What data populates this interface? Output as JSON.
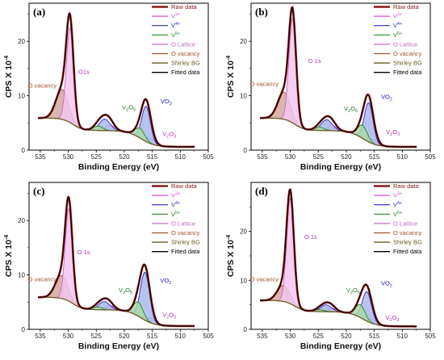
{
  "legend": [
    {
      "label": "Raw data",
      "color": "#8b1a1a",
      "text_color": "#8b1a1a",
      "width": 2.6
    },
    {
      "label": "V3+",
      "color": "#d64fd6",
      "text_color": "#d64fd6",
      "width": 1.2
    },
    {
      "label": "V4+",
      "color": "#2a2ad0",
      "text_color": "#2a2ad0",
      "width": 1.2
    },
    {
      "label": "V5+",
      "color": "#1f8a1f",
      "text_color": "#1f8a1f",
      "width": 1.2
    },
    {
      "label": "O Lattice",
      "color": "#c468c4",
      "text_color": "#c468c4",
      "width": 1.2
    },
    {
      "label": "O vacancy",
      "color": "#a0522d",
      "text_color": "#a0522d",
      "width": 1.2
    },
    {
      "label": "Shirley BG",
      "color": "#6b5a1e",
      "text_color": "#6b5a1e",
      "width": 1.4
    },
    {
      "label": "Fitted data",
      "color": "#000000",
      "text_color": "#000000",
      "width": 1.4
    }
  ],
  "colors": {
    "raw": "#8b1a1a",
    "fit": "#000000",
    "bg": "#6b5a1e",
    "olattice_fill": "#f3c6ee",
    "olattice_line": "#c468c4",
    "ovac_fill": "#d4a8a0",
    "ovac_line": "#a0522d",
    "v3_fill": "#eecbe8",
    "v3_line": "#d64fd6",
    "v4_fill": "#a9b9ea",
    "v4_line": "#2a2ad0",
    "v5_fill": "#a9d8a9",
    "v5_line": "#1f8a1f",
    "ann_ovac": "#a0522d",
    "ann_o1s": "#b030b0",
    "ann_v2o3_green": "#1f7a1f",
    "ann_vo2": "#1a1aa8",
    "ann_v2o3_purple": "#b030b0"
  },
  "chart_data": [
    {
      "type": "line",
      "panel_label": "(a)",
      "xlabel": "Binding Energy (eV)",
      "ylabel": "CPS X 10",
      "ylabel_exp": "-4",
      "xlim": [
        537,
        505
      ],
      "ylim": [
        0,
        27
      ],
      "xticks": [
        535,
        530,
        525,
        520,
        515,
        510,
        505
      ],
      "yticks": [
        0,
        10,
        20
      ],
      "background": 5.5,
      "components": [
        {
          "name": "O vacancy",
          "center": 531.1,
          "height": 5.5,
          "fwhm": 2.6
        },
        {
          "name": "O Lattice",
          "center": 529.7,
          "height": 17.5,
          "fwhm": 1.5
        },
        {
          "name": "V3+",
          "center": 522.5,
          "height": 1.0,
          "fwhm": 2.0
        },
        {
          "name": "V4+",
          "center": 523.5,
          "height": 2.1,
          "fwhm": 2.3
        },
        {
          "name": "V5+",
          "center": 524.7,
          "height": 0.8,
          "fwhm": 2.0
        },
        {
          "name": "V3+",
          "center": 515.2,
          "height": 1.0,
          "fwhm": 1.8
        },
        {
          "name": "V4+",
          "center": 516.1,
          "height": 6.5,
          "fwhm": 1.8
        },
        {
          "name": "V5+",
          "center": 517.2,
          "height": 1.8,
          "fwhm": 2.0
        }
      ],
      "annotations": [
        {
          "text": "O vacancy",
          "x": 537.2,
          "y": 11.5,
          "role": "ovac"
        },
        {
          "text": "O1s",
          "x": 528.2,
          "y": 14.0,
          "role": "o1s"
        },
        {
          "text": "V",
          "sub": "2",
          "text2": "O",
          "sub2": "5",
          "x": 520.4,
          "y": 7.5,
          "role": "v2o5"
        },
        {
          "text": "VO",
          "sub": "2",
          "x": 513.5,
          "y": 8.6,
          "role": "vo2"
        },
        {
          "text": "V",
          "sub": "2",
          "text2": "O",
          "sub2": "3",
          "x": 513.2,
          "y": 2.6,
          "role": "v2o3"
        }
      ]
    },
    {
      "type": "line",
      "panel_label": "(b)",
      "xlabel": "Binding Energy (eV)",
      "ylabel": "CPS X 10",
      "ylabel_exp": "-4",
      "xlim": [
        537,
        505
      ],
      "ylim": [
        0,
        27
      ],
      "xticks": [
        535,
        530,
        525,
        520,
        515,
        510,
        505
      ],
      "yticks": [
        0,
        10,
        20
      ],
      "background": 5.5,
      "components": [
        {
          "name": "O vacancy",
          "center": 531.1,
          "height": 5.0,
          "fwhm": 2.6
        },
        {
          "name": "O Lattice",
          "center": 529.6,
          "height": 19.2,
          "fwhm": 1.5
        },
        {
          "name": "V3+",
          "center": 522.5,
          "height": 0.9,
          "fwhm": 2.0
        },
        {
          "name": "V4+",
          "center": 523.5,
          "height": 2.0,
          "fwhm": 2.3
        },
        {
          "name": "V5+",
          "center": 524.8,
          "height": 0.6,
          "fwhm": 2.0
        },
        {
          "name": "V3+",
          "center": 515.0,
          "height": 0.9,
          "fwhm": 1.8
        },
        {
          "name": "V4+",
          "center": 516.0,
          "height": 7.2,
          "fwhm": 1.8
        },
        {
          "name": "V5+",
          "center": 517.1,
          "height": 2.4,
          "fwhm": 2.0
        }
      ],
      "annotations": [
        {
          "text": "O vacancy",
          "x": 537.2,
          "y": 11.8,
          "role": "ovac"
        },
        {
          "text": "O 1s",
          "x": 526.8,
          "y": 16.0,
          "role": "o1s"
        },
        {
          "text": "V",
          "sub": "2",
          "text2": "O",
          "sub2": "5",
          "x": 520.4,
          "y": 7.3,
          "role": "v2o5"
        },
        {
          "text": "VO",
          "sub": "2",
          "x": 513.8,
          "y": 9.4,
          "role": "vo2"
        },
        {
          "text": "V",
          "sub": "2",
          "text2": "O",
          "sub2": "3",
          "x": 512.9,
          "y": 3.0,
          "role": "v2o3"
        }
      ]
    },
    {
      "type": "line",
      "panel_label": "(c)",
      "xlabel": "Binding Energy (eV)",
      "ylabel": "CPS X 10",
      "ylabel_exp": "-4",
      "xlim": [
        537,
        505
      ],
      "ylim": [
        0,
        27
      ],
      "xticks": [
        535,
        530,
        525,
        520,
        515,
        510,
        505
      ],
      "yticks": [
        0,
        10,
        20
      ],
      "background": 5.5,
      "components": [
        {
          "name": "O vacancy",
          "center": 531.2,
          "height": 4.2,
          "fwhm": 2.6
        },
        {
          "name": "O Lattice",
          "center": 529.9,
          "height": 17.0,
          "fwhm": 1.5
        },
        {
          "name": "V3+",
          "center": 522.6,
          "height": 0.8,
          "fwhm": 2.0
        },
        {
          "name": "V4+",
          "center": 523.6,
          "height": 1.5,
          "fwhm": 2.3
        },
        {
          "name": "V5+",
          "center": 524.8,
          "height": 0.5,
          "fwhm": 2.0
        },
        {
          "name": "V3+",
          "center": 515.3,
          "height": 0.9,
          "fwhm": 1.8
        },
        {
          "name": "V4+",
          "center": 516.3,
          "height": 8.8,
          "fwhm": 1.9
        },
        {
          "name": "V5+",
          "center": 517.5,
          "height": 2.6,
          "fwhm": 2.0
        }
      ],
      "annotations": [
        {
          "text": "O vacancy",
          "x": 537.2,
          "y": 8.8,
          "role": "ovac"
        },
        {
          "text": "O 1s",
          "x": 528.4,
          "y": 13.8,
          "role": "o1s"
        },
        {
          "text": "V",
          "sub": "2",
          "text2": "O",
          "sub2": "5",
          "x": 521.0,
          "y": 6.8,
          "role": "v2o5"
        },
        {
          "text": "VO",
          "sub": "2",
          "x": 513.6,
          "y": 8.6,
          "role": "vo2"
        },
        {
          "text": "V",
          "sub": "2",
          "text2": "O",
          "sub2": "3",
          "x": 513.2,
          "y": 2.3,
          "role": "v2o3"
        }
      ]
    },
    {
      "type": "line",
      "panel_label": "(d)",
      "xlabel": "Binding Energy (eV)",
      "ylabel": "CPS X 10",
      "ylabel_exp": "-4",
      "xlim": [
        537,
        505
      ],
      "ylim": [
        0,
        30
      ],
      "xticks": [
        535,
        530,
        525,
        520,
        515,
        510,
        505
      ],
      "yticks": [
        0,
        10,
        20
      ],
      "background": 5.5,
      "components": [
        {
          "name": "O vacancy",
          "center": 531.2,
          "height": 3.3,
          "fwhm": 2.6
        },
        {
          "name": "O Lattice",
          "center": 530.0,
          "height": 21.5,
          "fwhm": 1.5
        },
        {
          "name": "V3+",
          "center": 522.6,
          "height": 0.7,
          "fwhm": 2.0
        },
        {
          "name": "V4+",
          "center": 523.6,
          "height": 1.4,
          "fwhm": 2.3
        },
        {
          "name": "V5+",
          "center": 524.8,
          "height": 0.4,
          "fwhm": 2.0
        },
        {
          "name": "V3+",
          "center": 515.3,
          "height": 0.8,
          "fwhm": 1.8
        },
        {
          "name": "V4+",
          "center": 516.3,
          "height": 6.0,
          "fwhm": 1.9
        },
        {
          "name": "V5+",
          "center": 517.5,
          "height": 2.6,
          "fwhm": 2.0
        }
      ],
      "annotations": [
        {
          "text": "O vacancy",
          "x": 537.2,
          "y": 9.8,
          "role": "ovac"
        },
        {
          "text": "O 1s",
          "x": 527.5,
          "y": 18.5,
          "role": "o1s"
        },
        {
          "text": "V",
          "sub": "2",
          "text2": "O",
          "sub2": "5",
          "x": 520.0,
          "y": 7.6,
          "role": "v2o5"
        },
        {
          "text": "VO",
          "sub": "2",
          "x": 513.8,
          "y": 9.0,
          "role": "vo2"
        },
        {
          "text": "V",
          "sub": "2",
          "text2": "O",
          "sub2": "3",
          "x": 513.0,
          "y": 2.0,
          "role": "v2o3"
        }
      ]
    }
  ]
}
